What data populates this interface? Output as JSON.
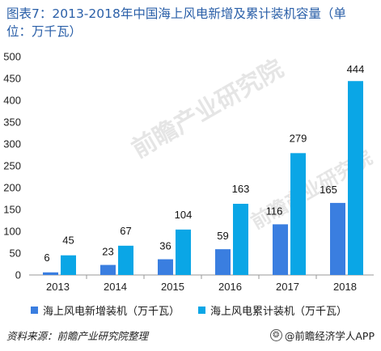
{
  "title": {
    "line1": "图表7：2013-2018年中国海上风电新增及累计装机容量（单",
    "line2": "位：万千瓦）"
  },
  "chart_data": {
    "type": "bar",
    "categories": [
      "2013",
      "2014",
      "2015",
      "2016",
      "2017",
      "2018"
    ],
    "series": [
      {
        "name": "海上风电新增装机（万千瓦）",
        "values": [
          6,
          23,
          36,
          59,
          116,
          165
        ],
        "color": "#3a7ee0"
      },
      {
        "name": "海上风电累计装机（万千瓦）",
        "values": [
          45,
          67,
          104,
          163,
          279,
          444
        ],
        "color": "#0aa6e6"
      }
    ],
    "ylim": [
      0,
      500
    ],
    "yticks": [
      "0",
      "50",
      "100",
      "150",
      "200",
      "250",
      "300",
      "350",
      "400",
      "450",
      "500"
    ],
    "grid": false,
    "legend_position": "bottom"
  },
  "watermark": {
    "text": "前瞻产业研究院"
  },
  "footer": {
    "source": "资料来源：前瞻产业研究院整理",
    "brand": "@前瞻经济学人APP"
  }
}
